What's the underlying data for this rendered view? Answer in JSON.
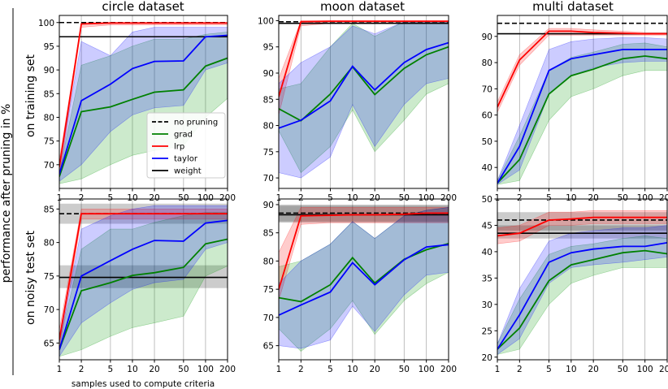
{
  "figure": {
    "ylabel_main": "performance after pruning in %",
    "row_labels": [
      "on training set",
      "on noisy test set"
    ],
    "xlabel": "samples used to compute criteria",
    "col_titles": [
      "circle dataset",
      "moon dataset",
      "multi dataset"
    ]
  },
  "colors": {
    "no pruning": "#000000",
    "grad": "#008000",
    "lrp": "#ff0000",
    "taylor": "#0000ff",
    "weight": "#000000"
  },
  "legend": {
    "position": "inside lower right of top-left panel",
    "entries": [
      {
        "label": "no pruning",
        "color": "#000000",
        "dashed": true
      },
      {
        "label": "grad",
        "color": "#008000",
        "dashed": false
      },
      {
        "label": "lrp",
        "color": "#ff0000",
        "dashed": false
      },
      {
        "label": "taylor",
        "color": "#0000ff",
        "dashed": false
      },
      {
        "label": "weight",
        "color": "#000000",
        "dashed": false
      }
    ]
  },
  "chart_data": [
    {
      "type": "line",
      "title": "circle dataset",
      "row": "on training set",
      "x": [
        1,
        2,
        5,
        10,
        20,
        50,
        100,
        200
      ],
      "xscale": "log",
      "xticks": [
        "1",
        "2",
        "5",
        "10",
        "20",
        "50",
        "100",
        "200"
      ],
      "ylim": [
        65,
        101.5
      ],
      "yticks": [
        70,
        75,
        80,
        85,
        90,
        95,
        100
      ],
      "grid": "vertical",
      "reference": {
        "no_pruning": 100,
        "weight": 97
      },
      "series": [
        {
          "name": "grad",
          "values": [
            67.5,
            81.2,
            82.2,
            83.8,
            85.3,
            85.8,
            90.8,
            92.5
          ],
          "lower": [
            66,
            67,
            70,
            72,
            73,
            74,
            80,
            84
          ],
          "upper": [
            68.5,
            91,
            93,
            95,
            96.5,
            96.5,
            97.5,
            98
          ]
        },
        {
          "name": "lrp",
          "values": [
            69.5,
            99.7,
            99.9,
            99.9,
            99.9,
            99.9,
            99.9,
            99.9
          ],
          "lower": [
            67,
            99,
            99.5,
            99.5,
            99.5,
            99.5,
            99.5,
            99.5
          ],
          "upper": [
            71,
            100,
            100,
            100,
            100,
            100,
            100,
            100
          ]
        },
        {
          "name": "taylor",
          "values": [
            68,
            83.5,
            87,
            90.3,
            91.8,
            91.9,
            97,
            97.3
          ],
          "lower": [
            66.5,
            70,
            77,
            80.5,
            82,
            82.5,
            90,
            91.5
          ],
          "upper": [
            69.5,
            96,
            93,
            98,
            99,
            99,
            99,
            99
          ]
        }
      ]
    },
    {
      "type": "line",
      "title": "moon dataset",
      "row": "on training set",
      "x": [
        1,
        2,
        5,
        10,
        20,
        50,
        100,
        200
      ],
      "xscale": "log",
      "xticks": [
        "1",
        "2",
        "5",
        "10",
        "20",
        "50",
        "100",
        "200"
      ],
      "ylim": [
        68,
        101
      ],
      "yticks": [
        70,
        75,
        80,
        85,
        90,
        95,
        100
      ],
      "grid": "vertical",
      "reference": {
        "no_pruning": 99.8,
        "weight": 99.5
      },
      "series": [
        {
          "name": "grad",
          "values": [
            83.2,
            80.9,
            86,
            91.2,
            85.9,
            90.9,
            93.5,
            95
          ],
          "lower": [
            79,
            71,
            76,
            83,
            75,
            81,
            86,
            88
          ],
          "upper": [
            87,
            88,
            95,
            99.5,
            97,
            99.8,
            99.8,
            99.8
          ]
        },
        {
          "name": "lrp",
          "values": [
            85.5,
            99.8,
            99.9,
            99.9,
            99.9,
            99.9,
            99.9,
            99.9
          ],
          "lower": [
            82,
            99,
            99.5,
            99.5,
            99.5,
            99.5,
            99.5,
            99.5
          ],
          "upper": [
            89,
            100,
            100,
            100,
            100,
            100,
            100,
            100
          ]
        },
        {
          "name": "taylor",
          "values": [
            79.5,
            81,
            84.7,
            91.3,
            86.8,
            92,
            94.5,
            95.8
          ],
          "lower": [
            71,
            70,
            74,
            84,
            76,
            84,
            88,
            89
          ],
          "upper": [
            88,
            92,
            95,
            99,
            97.5,
            99.8,
            99.8,
            99.8
          ]
        }
      ]
    },
    {
      "type": "line",
      "title": "multi dataset",
      "row": "on training set",
      "x": [
        1,
        2,
        5,
        10,
        20,
        50,
        100,
        200
      ],
      "xscale": "log",
      "xticks": [
        "1",
        "2",
        "5",
        "10",
        "20",
        "50",
        "100",
        "200"
      ],
      "ylim": [
        32,
        98
      ],
      "yticks": [
        40,
        50,
        60,
        70,
        80,
        90
      ],
      "grid": "vertical",
      "reference": {
        "no_pruning": 95,
        "weight": 91
      },
      "series": [
        {
          "name": "grad",
          "values": [
            34,
            43,
            68,
            75,
            77.5,
            81.5,
            82.5,
            81.5
          ],
          "lower": [
            33.5,
            35,
            58,
            67,
            70,
            75,
            77,
            77
          ],
          "upper": [
            35,
            52,
            77,
            82,
            84,
            87,
            87.5,
            86
          ]
        },
        {
          "name": "lrp",
          "values": [
            63,
            81,
            92,
            92,
            91.5,
            91.2,
            91,
            91
          ],
          "lower": [
            61,
            79,
            90.5,
            90.5,
            90.5,
            90.5,
            90.5,
            90.5
          ],
          "upper": [
            65,
            83,
            93,
            93,
            92.5,
            92,
            91.5,
            91.5
          ]
        },
        {
          "name": "taylor",
          "values": [
            34,
            48,
            77,
            81.5,
            83,
            85,
            85,
            85
          ],
          "lower": [
            33.5,
            39,
            68,
            75,
            78,
            80,
            80.5,
            80.5
          ],
          "upper": [
            35,
            56,
            85,
            88,
            89,
            89.5,
            89.5,
            89
          ]
        }
      ]
    },
    {
      "type": "line",
      "title": "",
      "row": "on noisy test set",
      "x": [
        1,
        2,
        5,
        10,
        20,
        50,
        100,
        200
      ],
      "xscale": "log",
      "xticks": [
        "1",
        "2",
        "5",
        "10",
        "20",
        "50",
        "100",
        "200"
      ],
      "ylim": [
        62.5,
        86.5
      ],
      "yticks": [
        65,
        70,
        75,
        80,
        85
      ],
      "grid": "vertical",
      "reference": {
        "no_pruning": 84.3,
        "weight": 74.8
      },
      "bands": {
        "no_pruning": [
          82.8,
          85.8
        ],
        "weight": [
          73.2,
          76.6
        ]
      },
      "series": [
        {
          "name": "grad",
          "values": [
            64,
            72.8,
            74,
            75.1,
            75.5,
            76.3,
            79.8,
            80.5
          ],
          "lower": [
            63,
            64,
            66,
            67.3,
            68,
            69,
            75,
            76.5
          ],
          "upper": [
            65,
            79,
            82,
            82,
            83,
            84,
            84.5,
            84.5
          ]
        },
        {
          "name": "lrp",
          "values": [
            65.5,
            84.3,
            84.3,
            84.3,
            84.3,
            84.3,
            84.3,
            84.3
          ],
          "lower": [
            64,
            83.5,
            83.5,
            83.5,
            83.5,
            83.5,
            83.5,
            83.5
          ],
          "upper": [
            67,
            85,
            85,
            85,
            85,
            85,
            85,
            85
          ]
        },
        {
          "name": "taylor",
          "values": [
            64,
            75,
            77.3,
            79,
            80.3,
            80.2,
            82.9,
            83.3
          ],
          "lower": [
            63,
            68,
            71,
            73,
            74,
            74.5,
            79,
            80
          ],
          "upper": [
            65,
            82,
            84,
            85,
            85.5,
            85.5,
            85.5,
            85.5
          ]
        }
      ]
    },
    {
      "type": "line",
      "title": "",
      "row": "on noisy test set",
      "x": [
        1,
        2,
        5,
        10,
        20,
        50,
        100,
        200
      ],
      "xscale": "log",
      "xticks": [
        "1",
        "2",
        "5",
        "10",
        "20",
        "50",
        "100",
        "200"
      ],
      "ylim": [
        62.5,
        91
      ],
      "yticks": [
        65,
        70,
        75,
        80,
        85,
        90
      ],
      "grid": "vertical",
      "reference": {
        "no_pruning": 88.5,
        "weight": 88.2
      },
      "bands": {
        "no_pruning": [
          87,
          90
        ],
        "weight": [
          86.8,
          89.8
        ]
      },
      "series": [
        {
          "name": "grad",
          "values": [
            73.5,
            72.8,
            75.8,
            80.6,
            76.1,
            80.3,
            82,
            83.1
          ],
          "lower": [
            68,
            64,
            68,
            73,
            67,
            73,
            76,
            78
          ],
          "upper": [
            79,
            80,
            83,
            87,
            84,
            88,
            89,
            89.5
          ]
        },
        {
          "name": "lrp",
          "values": [
            75,
            88,
            88.1,
            88.2,
            88.2,
            88.3,
            88.5,
            88.5
          ],
          "lower": [
            73,
            86.5,
            86.8,
            86.8,
            86.8,
            86.8,
            86.8,
            86.8
          ],
          "upper": [
            81.5,
            89.5,
            89.5,
            89.5,
            89.5,
            89.5,
            89.5,
            89.5
          ]
        },
        {
          "name": "taylor",
          "values": [
            70.4,
            72.2,
            74.5,
            79.7,
            75.8,
            80.2,
            82.5,
            82.9
          ],
          "lower": [
            65,
            64.5,
            66,
            72,
            67.5,
            74,
            77.5,
            78
          ],
          "upper": [
            76,
            80,
            83,
            87,
            84,
            88,
            89,
            89.5
          ]
        }
      ]
    },
    {
      "type": "line",
      "title": "",
      "row": "on noisy test set",
      "x": [
        1,
        2,
        5,
        10,
        20,
        50,
        100,
        200
      ],
      "xscale": "log",
      "xticks": [
        "1",
        "2",
        "5",
        "10",
        "20",
        "50",
        "100",
        "200"
      ],
      "ylim": [
        19.5,
        50
      ],
      "yticks": [
        20,
        25,
        30,
        35,
        40,
        45,
        50
      ],
      "grid": "vertical",
      "reference": {
        "no_pruning": 46,
        "weight": 43.5
      },
      "bands": {
        "no_pruning": [
          44,
          47.5
        ],
        "weight": [
          42.5,
          45
        ]
      },
      "series": [
        {
          "name": "grad",
          "values": [
            21.5,
            25.5,
            34.5,
            37.5,
            38.5,
            39.8,
            40.2,
            39.6
          ],
          "lower": [
            20.5,
            21.5,
            30,
            34,
            35.5,
            37,
            37,
            37
          ],
          "upper": [
            22.5,
            31,
            39.5,
            41,
            41.5,
            42.5,
            43,
            42.5
          ]
        },
        {
          "name": "lrp",
          "values": [
            43,
            43.5,
            46,
            46.2,
            46.5,
            46.5,
            46.5,
            46.5
          ],
          "lower": [
            41.5,
            42,
            45,
            45,
            45.3,
            45.3,
            45.3,
            45.3
          ],
          "upper": [
            44.5,
            45,
            47.5,
            47.5,
            47.8,
            47.8,
            47.8,
            47.8
          ]
        },
        {
          "name": "taylor",
          "values": [
            21.5,
            28,
            38,
            39.8,
            40.5,
            41,
            41,
            41.7
          ],
          "lower": [
            20.5,
            23.5,
            34,
            37,
            37.5,
            38,
            38.5,
            39
          ],
          "upper": [
            22.5,
            33,
            42,
            43.5,
            44,
            44.5,
            44.5,
            45
          ]
        }
      ]
    }
  ]
}
